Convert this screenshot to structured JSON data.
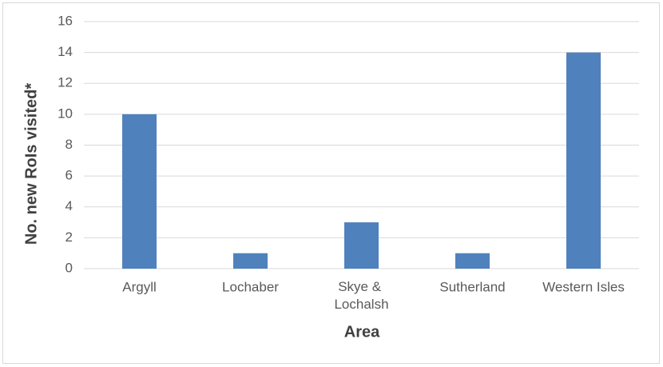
{
  "chart_data": {
    "type": "bar",
    "categories": [
      "Argyll",
      "Lochaber",
      "Skye & Lochalsh",
      "Sutherland",
      "Western Isles"
    ],
    "values": [
      10,
      1,
      3,
      1,
      14
    ],
    "color": "#4f81bd",
    "x_label": "Area",
    "y_label": "No. new RoIs visited*",
    "ylim": [
      0,
      16
    ],
    "yticks": [
      0,
      2,
      4,
      6,
      8,
      10,
      12,
      14,
      16
    ],
    "grid": true
  }
}
